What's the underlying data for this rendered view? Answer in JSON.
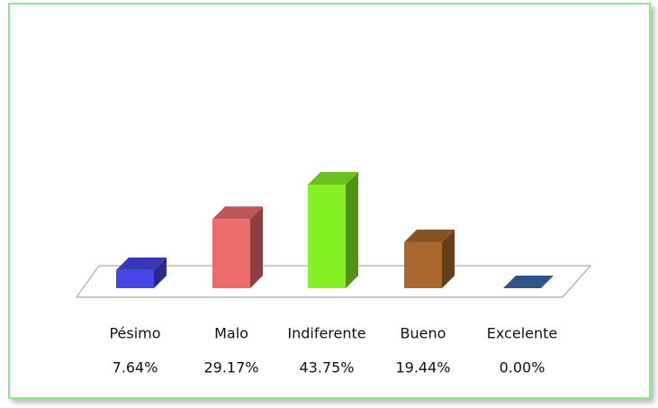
{
  "chart_data": {
    "type": "bar3d",
    "categories": [
      "Pésimo",
      "Malo",
      "Indiferente",
      "Bueno",
      "Excelente"
    ],
    "values": [
      7.64,
      29.17,
      43.75,
      19.44,
      0
    ],
    "value_labels": [
      "7.64%",
      "29.17%",
      "43.75%",
      "19.44%",
      "0.00%"
    ],
    "colors": [
      "#4646e6",
      "#ec6b6b",
      "#86f226",
      "#a9682e",
      "#3a6aa8"
    ]
  }
}
